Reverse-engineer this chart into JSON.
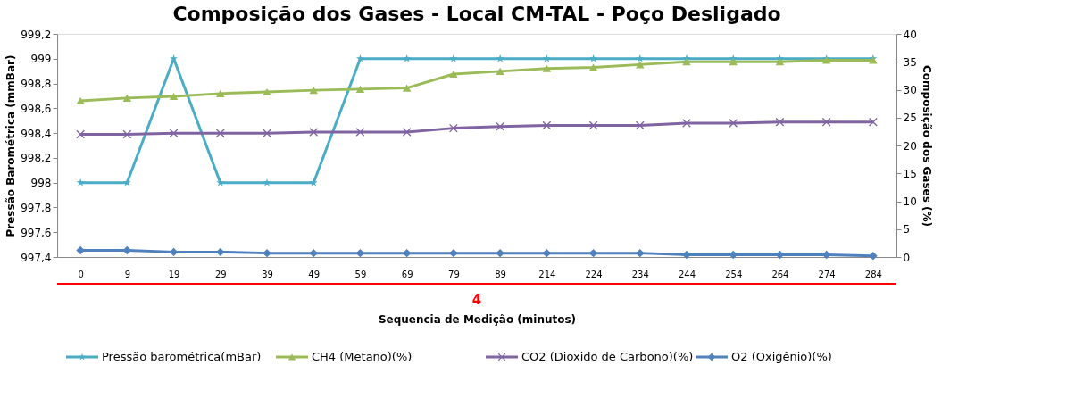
{
  "chart_data": {
    "type": "line",
    "title": "Composição dos Gases - Local CM-TAL   -   Poço Desligado",
    "xlabel": "Sequencia de Medição (minutos)",
    "ylabel": "Pressão Barométrica (mmBar)",
    "y2label": "Composição dos Gases (%)",
    "categories": [
      "0",
      "9",
      "19",
      "29",
      "39",
      "49",
      "59",
      "69",
      "79",
      "89",
      "214",
      "224",
      "234",
      "244",
      "254",
      "264",
      "274",
      "284"
    ],
    "series": [
      {
        "name": "Pressão barométrica(mBar)",
        "color": "#4bacc6",
        "marker": "star",
        "values": [
          998,
          998,
          999,
          998,
          998,
          998,
          999,
          999,
          999,
          999,
          999,
          999,
          999,
          999,
          999,
          999,
          999,
          999
        ]
      },
      {
        "name": "CH4 (Metano)(%)",
        "color": "#9bbb59",
        "marker": "triangle",
        "axis": "y2",
        "values": [
          28,
          28.5,
          28.8,
          29.3,
          29.6,
          29.9,
          30.1,
          30.3,
          32.8,
          33.3,
          33.8,
          34.0,
          34.5,
          35.0,
          35.0,
          35.0,
          35.3,
          35.3
        ]
      },
      {
        "name": "CO2 (Dioxido de Carbono)(%)",
        "color": "#8064a2",
        "marker": "cross",
        "axis": "y2",
        "values": [
          22,
          22,
          22.2,
          22.2,
          22.2,
          22.4,
          22.4,
          22.4,
          23.1,
          23.4,
          23.6,
          23.6,
          23.6,
          24,
          24,
          24.2,
          24.2,
          24.2
        ]
      },
      {
        "name": "O2 (Oxigênio)(%)",
        "color": "#4f81bd",
        "marker": "diamond",
        "axis": "y2",
        "values": [
          1.2,
          1.2,
          0.9,
          0.9,
          0.7,
          0.7,
          0.7,
          0.7,
          0.7,
          0.7,
          0.7,
          0.7,
          0.7,
          0.4,
          0.4,
          0.4,
          0.4,
          0.2
        ]
      }
    ],
    "ylim": [
      997.4,
      999.2
    ],
    "yticks": [
      {
        "value": 997.4,
        "label": "997,4"
      },
      {
        "value": 997.6,
        "label": "997,6"
      },
      {
        "value": 997.8,
        "label": "997,8"
      },
      998,
      {
        "value": 998.2,
        "label": "998,2"
      },
      {
        "value": 998.4,
        "label": "998,4"
      },
      {
        "value": 998.6,
        "label": "998,6"
      },
      {
        "value": 998.8,
        "label": "998,8"
      },
      999,
      {
        "value": 999.2,
        "label": "999,2"
      }
    ],
    "y2lim": [
      0,
      40
    ],
    "y2ticks": [
      0,
      5,
      10,
      15,
      20,
      25,
      30,
      35,
      40
    ],
    "annotations": [
      "4"
    ],
    "grid": false,
    "legend": "bottom",
    "line_style": "solid"
  }
}
